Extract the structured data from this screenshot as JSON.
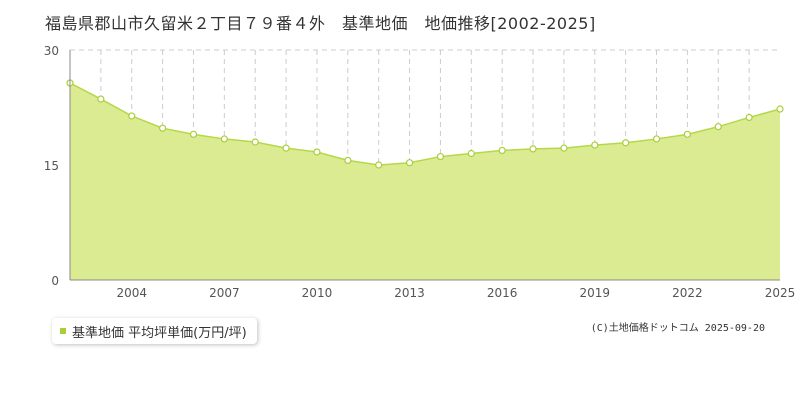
{
  "chart_data": {
    "type": "area",
    "title": "福島県郡山市久留米２丁目７９番４外　基準地価　地価推移[2002-2025]",
    "x": [
      2002,
      2003,
      2004,
      2005,
      2006,
      2007,
      2008,
      2009,
      2010,
      2011,
      2012,
      2013,
      2014,
      2015,
      2016,
      2017,
      2018,
      2019,
      2020,
      2021,
      2022,
      2023,
      2024,
      2025
    ],
    "series": [
      {
        "name": "基準地価 平均坪単価(万円/坪)",
        "values": [
          25.7,
          23.6,
          21.4,
          19.8,
          19.0,
          18.4,
          18.0,
          17.2,
          16.7,
          15.6,
          15.0,
          15.3,
          16.1,
          16.5,
          16.9,
          17.1,
          17.2,
          17.6,
          17.9,
          18.4,
          19.0,
          20.0,
          21.2,
          22.3
        ]
      }
    ],
    "x_tick_labels": [
      "2004",
      "2007",
      "2010",
      "2013",
      "2016",
      "2019",
      "2022",
      "2025"
    ],
    "y_tick_labels": [
      "0",
      "15",
      "30"
    ],
    "ylim": [
      0,
      30
    ],
    "xlim": [
      2002,
      2025
    ],
    "legend_position": "bottom-left",
    "grid": true
  },
  "legend": {
    "label": "基準地価 平均坪単価(万円/坪)"
  },
  "copyright": "(C)土地価格ドットコム 2025-09-20",
  "colors": {
    "fill": "#dbeb92",
    "line": "#b5d84a",
    "marker_fill": "#ffffff",
    "marker_stroke": "#a8cf38",
    "grid": "#cccccc",
    "axis": "#888888"
  }
}
